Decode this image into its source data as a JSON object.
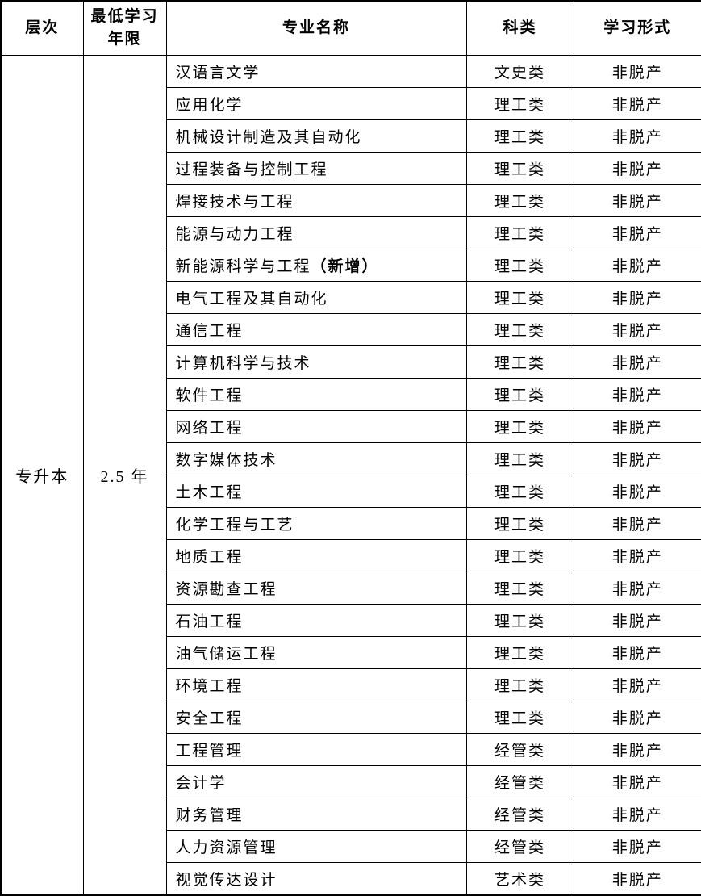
{
  "table": {
    "headers": {
      "level": "层次",
      "min_years": "最低学习年限",
      "major": "专业名称",
      "category": "科类",
      "study_form": "学习形式"
    },
    "level": "专升本",
    "min_years": "2.5 年",
    "rows": [
      {
        "major": "汉语言文学",
        "suffix": "",
        "category": "文史类",
        "form": "非脱产"
      },
      {
        "major": "应用化学",
        "suffix": "",
        "category": "理工类",
        "form": "非脱产"
      },
      {
        "major": "机械设计制造及其自动化",
        "suffix": "",
        "category": "理工类",
        "form": "非脱产"
      },
      {
        "major": "过程装备与控制工程",
        "suffix": "",
        "category": "理工类",
        "form": "非脱产"
      },
      {
        "major": "焊接技术与工程",
        "suffix": "",
        "category": "理工类",
        "form": "非脱产"
      },
      {
        "major": "能源与动力工程",
        "suffix": "",
        "category": "理工类",
        "form": "非脱产"
      },
      {
        "major": "新能源科学与工程",
        "suffix": "（新增）",
        "category": "理工类",
        "form": "非脱产"
      },
      {
        "major": "电气工程及其自动化",
        "suffix": "",
        "category": "理工类",
        "form": "非脱产"
      },
      {
        "major": "通信工程",
        "suffix": "",
        "category": "理工类",
        "form": "非脱产"
      },
      {
        "major": "计算机科学与技术",
        "suffix": "",
        "category": "理工类",
        "form": "非脱产"
      },
      {
        "major": "软件工程",
        "suffix": "",
        "category": "理工类",
        "form": "非脱产"
      },
      {
        "major": "网络工程",
        "suffix": "",
        "category": "理工类",
        "form": "非脱产"
      },
      {
        "major": "数字媒体技术",
        "suffix": "",
        "category": "理工类",
        "form": "非脱产"
      },
      {
        "major": "土木工程",
        "suffix": "",
        "category": "理工类",
        "form": "非脱产"
      },
      {
        "major": "化学工程与工艺",
        "suffix": "",
        "category": "理工类",
        "form": "非脱产"
      },
      {
        "major": "地质工程",
        "suffix": "",
        "category": "理工类",
        "form": "非脱产"
      },
      {
        "major": "资源勘查工程",
        "suffix": "",
        "category": "理工类",
        "form": "非脱产"
      },
      {
        "major": "石油工程",
        "suffix": "",
        "category": "理工类",
        "form": "非脱产"
      },
      {
        "major": "油气储运工程",
        "suffix": "",
        "category": "理工类",
        "form": "非脱产"
      },
      {
        "major": "环境工程",
        "suffix": "",
        "category": "理工类",
        "form": "非脱产"
      },
      {
        "major": "安全工程",
        "suffix": "",
        "category": "理工类",
        "form": "非脱产"
      },
      {
        "major": "工程管理",
        "suffix": "",
        "category": "经管类",
        "form": "非脱产"
      },
      {
        "major": "会计学",
        "suffix": "",
        "category": "经管类",
        "form": "非脱产"
      },
      {
        "major": "财务管理",
        "suffix": "",
        "category": "经管类",
        "form": "非脱产"
      },
      {
        "major": "人力资源管理",
        "suffix": "",
        "category": "经管类",
        "form": "非脱产"
      },
      {
        "major": "视觉传达设计",
        "suffix": "",
        "category": "艺术类",
        "form": "非脱产"
      }
    ]
  }
}
